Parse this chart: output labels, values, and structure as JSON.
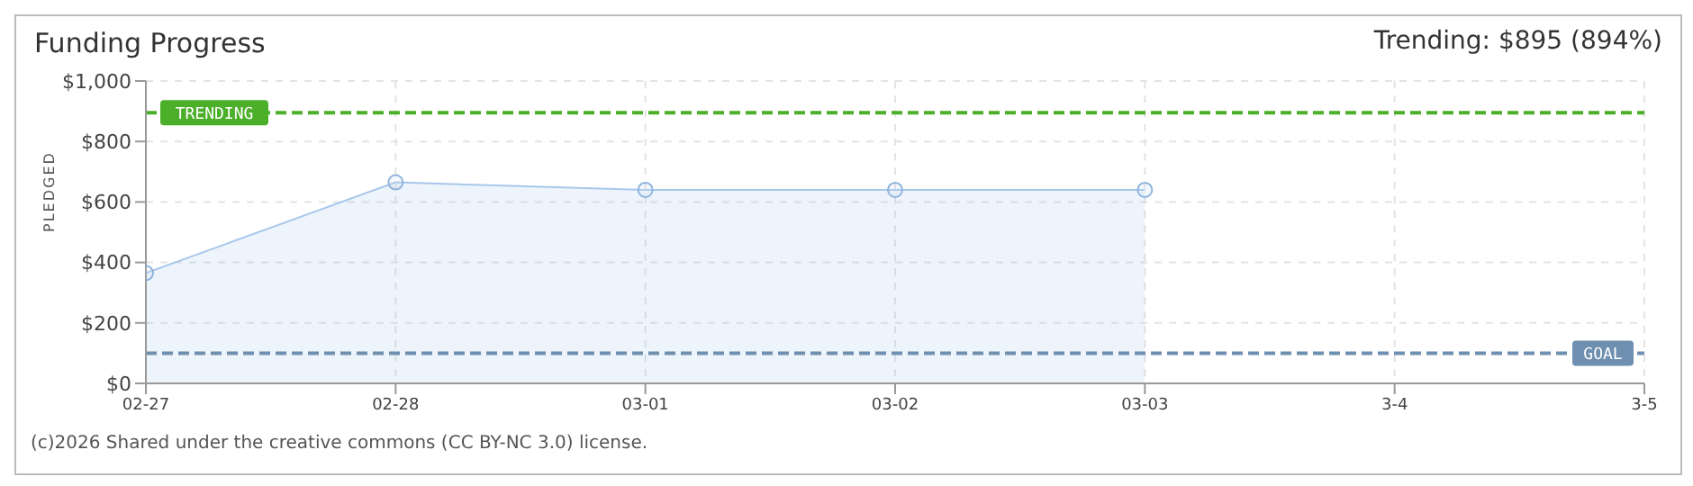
{
  "chart_data": {
    "type": "area",
    "title": "Funding Progress",
    "ylabel": "PLEDGED",
    "categories": [
      "02-27",
      "02-28",
      "03-01",
      "03-02",
      "03-03",
      "3-4",
      "3-5"
    ],
    "series": [
      {
        "color": "#a8c8ea",
        "values": [
          365,
          665,
          640,
          640,
          640,
          null,
          null
        ]
      }
    ],
    "ylim": [
      0,
      1000
    ],
    "yticks": [
      {
        "value": 0,
        "label": "$0"
      },
      {
        "value": 200,
        "label": "$200"
      },
      {
        "value": 400,
        "label": "$400"
      },
      {
        "value": 600,
        "label": "$600"
      },
      {
        "value": 800,
        "label": "$800"
      },
      {
        "value": 1000,
        "label": "$1,000"
      }
    ],
    "grid": true,
    "marker": "circle",
    "ref_lines": [
      {
        "axis": "y",
        "value": 895,
        "label": "TRENDING",
        "color": "#4caf2a",
        "line_style": "dashed"
      },
      {
        "axis": "y",
        "value": 100,
        "label": "GOAL",
        "color": "#6f8fb0",
        "line_style": "dashed"
      }
    ],
    "annotations": [
      "Trending: $895 (894%)",
      "(c)2026 Shared under the creative commons (CC BY-NC 3.0) license."
    ]
  }
}
